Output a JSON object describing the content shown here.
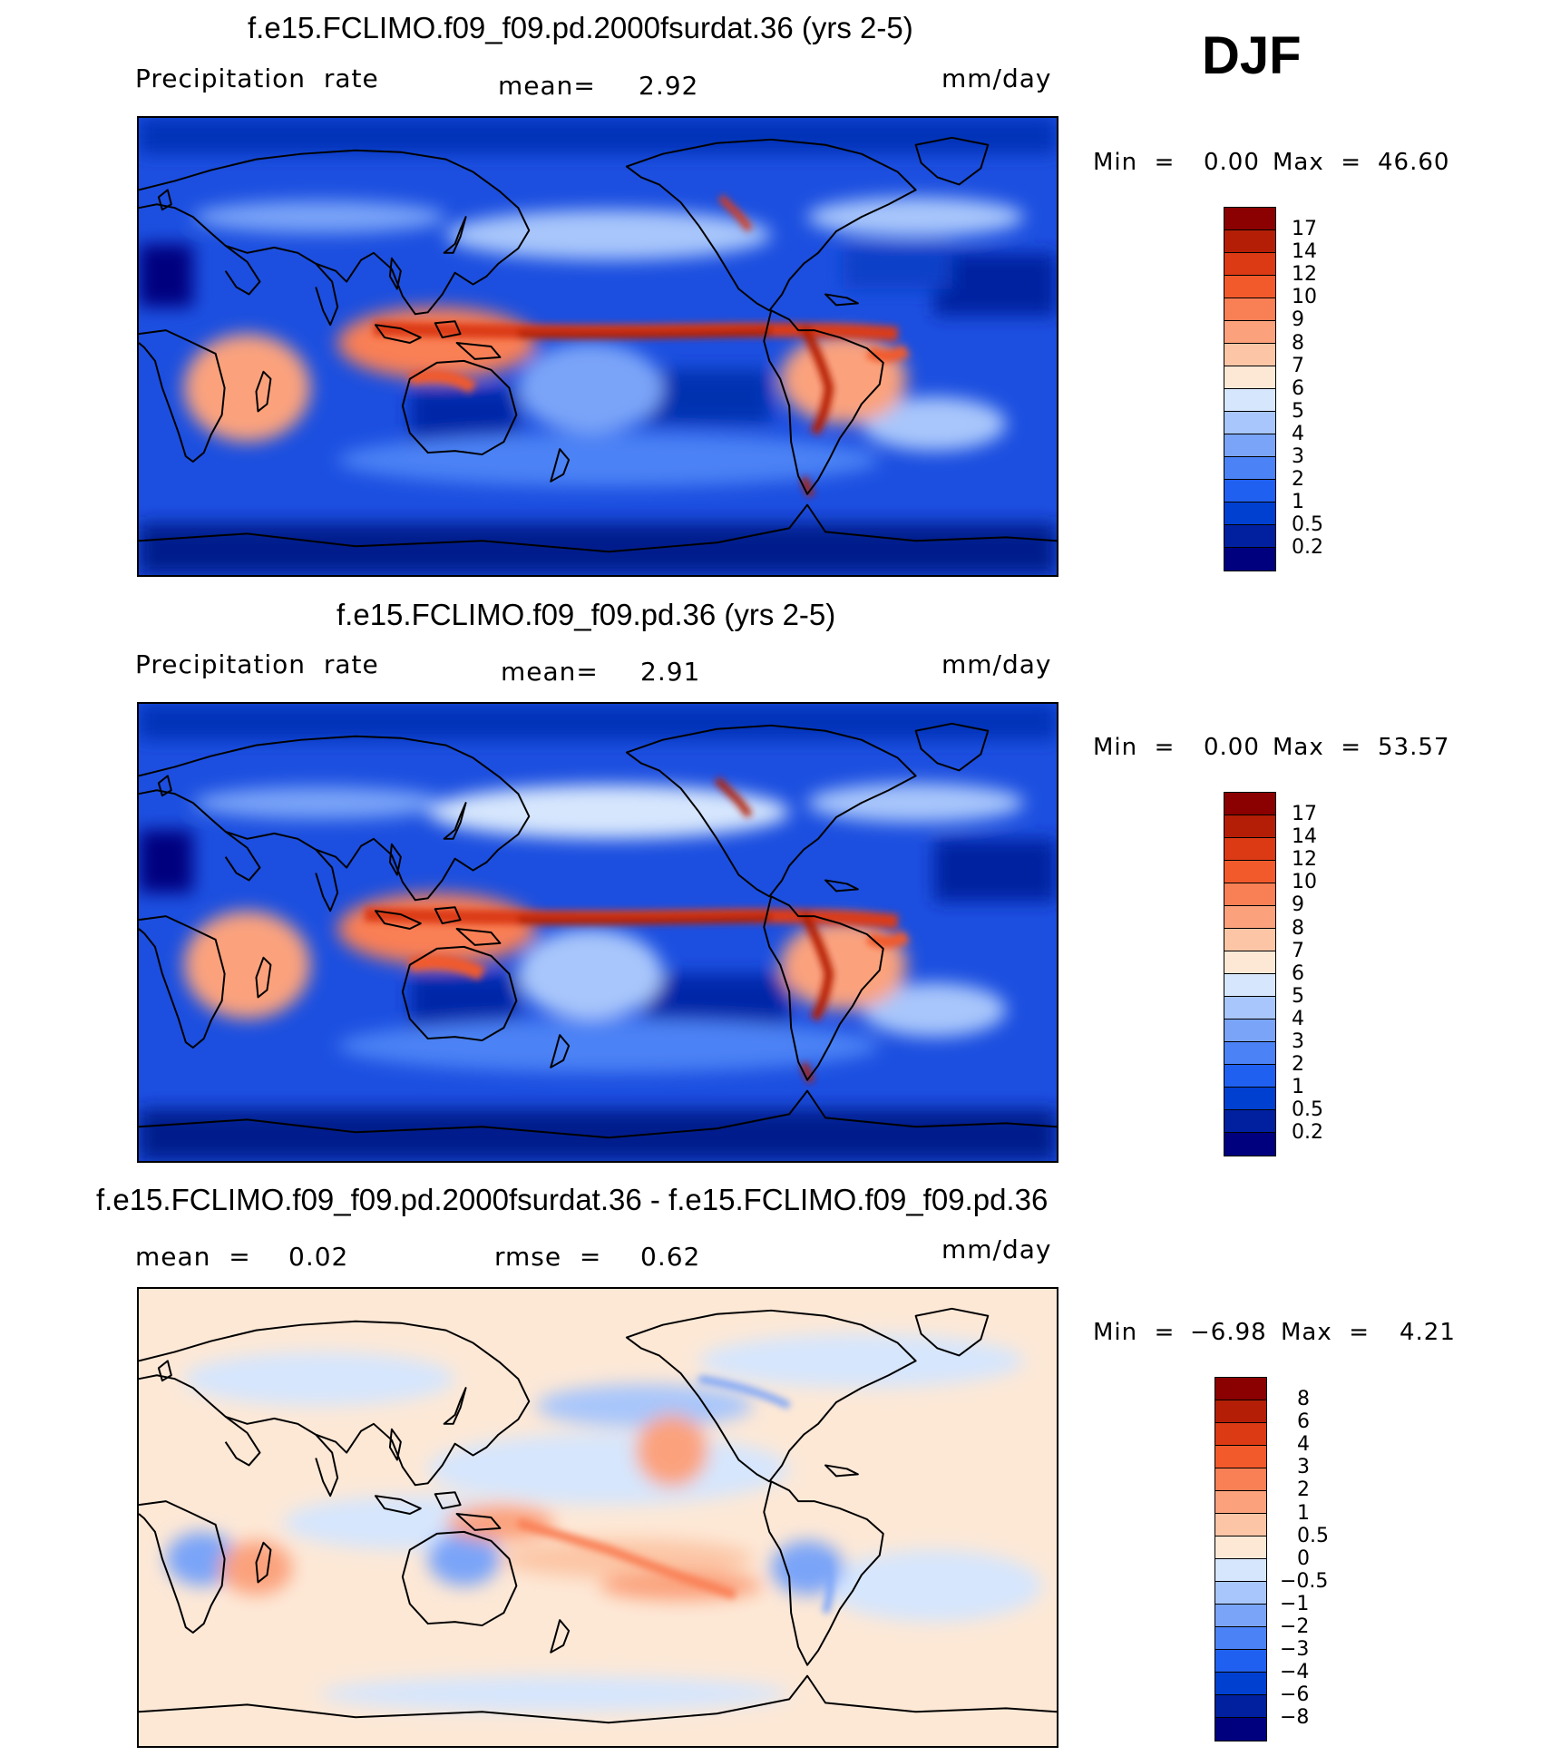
{
  "season": "DJF",
  "colors": {
    "abs_scale": [
      "#00007f",
      "#0020a0",
      "#0040d0",
      "#2060f0",
      "#4b82f5",
      "#7aa4f8",
      "#a8c6fb",
      "#d6e6fd",
      "#fde8d6",
      "#fcc6a6",
      "#fba27d",
      "#f97f55",
      "#f25a2c",
      "#dc3a14",
      "#b41e06",
      "#8b0000"
    ],
    "diff_scale": [
      "#00007f",
      "#0020a0",
      "#0040d0",
      "#2060f0",
      "#4b82f5",
      "#7aa4f8",
      "#a8c6fb",
      "#d6e6fd",
      "#fde8d6",
      "#fcc6a6",
      "#fba27d",
      "#f97f55",
      "#f25a2c",
      "#dc3a14",
      "#b41e06",
      "#8b0000"
    ],
    "coastline": "#000000"
  },
  "panels": [
    {
      "title": "f.e15.FCLIMO.f09_f09.pd.2000fsurdat.36 (yrs 2-5)",
      "left_label": "Precipitation  rate",
      "mean_label": "mean=",
      "mean_value": "2.92",
      "units": "mm/day",
      "min_label": "Min  =",
      "min_value": "0.00",
      "max_label": "Max  =",
      "max_value": "46.60",
      "colorbar_ticks": [
        "17",
        "14",
        "12",
        "10",
        "9",
        "8",
        "7",
        "6",
        "5",
        "4",
        "3",
        "2",
        "1",
        "0.5",
        "0.2"
      ]
    },
    {
      "title": "f.e15.FCLIMO.f09_f09.pd.36 (yrs 2-5)",
      "left_label": "Precipitation  rate",
      "mean_label": "mean=",
      "mean_value": "2.91",
      "units": "mm/day",
      "min_label": "Min  =",
      "min_value": "0.00",
      "max_label": "Max  =",
      "max_value": "53.57",
      "colorbar_ticks": [
        "17",
        "14",
        "12",
        "10",
        "9",
        "8",
        "7",
        "6",
        "5",
        "4",
        "3",
        "2",
        "1",
        "0.5",
        "0.2"
      ]
    },
    {
      "title": "f.e15.FCLIMO.f09_f09.pd.2000fsurdat.36 - f.e15.FCLIMO.f09_f09.pd.36",
      "mean_label": "mean  =",
      "mean_value": "0.02",
      "rmse_label": "rmse  =",
      "rmse_value": "0.62",
      "units": "mm/day",
      "min_label": "Min  =",
      "min_value": "−6.98",
      "max_label": "Max  =",
      "max_value": "4.21",
      "colorbar_ticks": [
        "8",
        "6",
        "4",
        "3",
        "2",
        "1",
        "0.5",
        "0",
        "−0.5",
        "−1",
        "−2",
        "−3",
        "−4",
        "−6",
        "−8"
      ]
    }
  ]
}
